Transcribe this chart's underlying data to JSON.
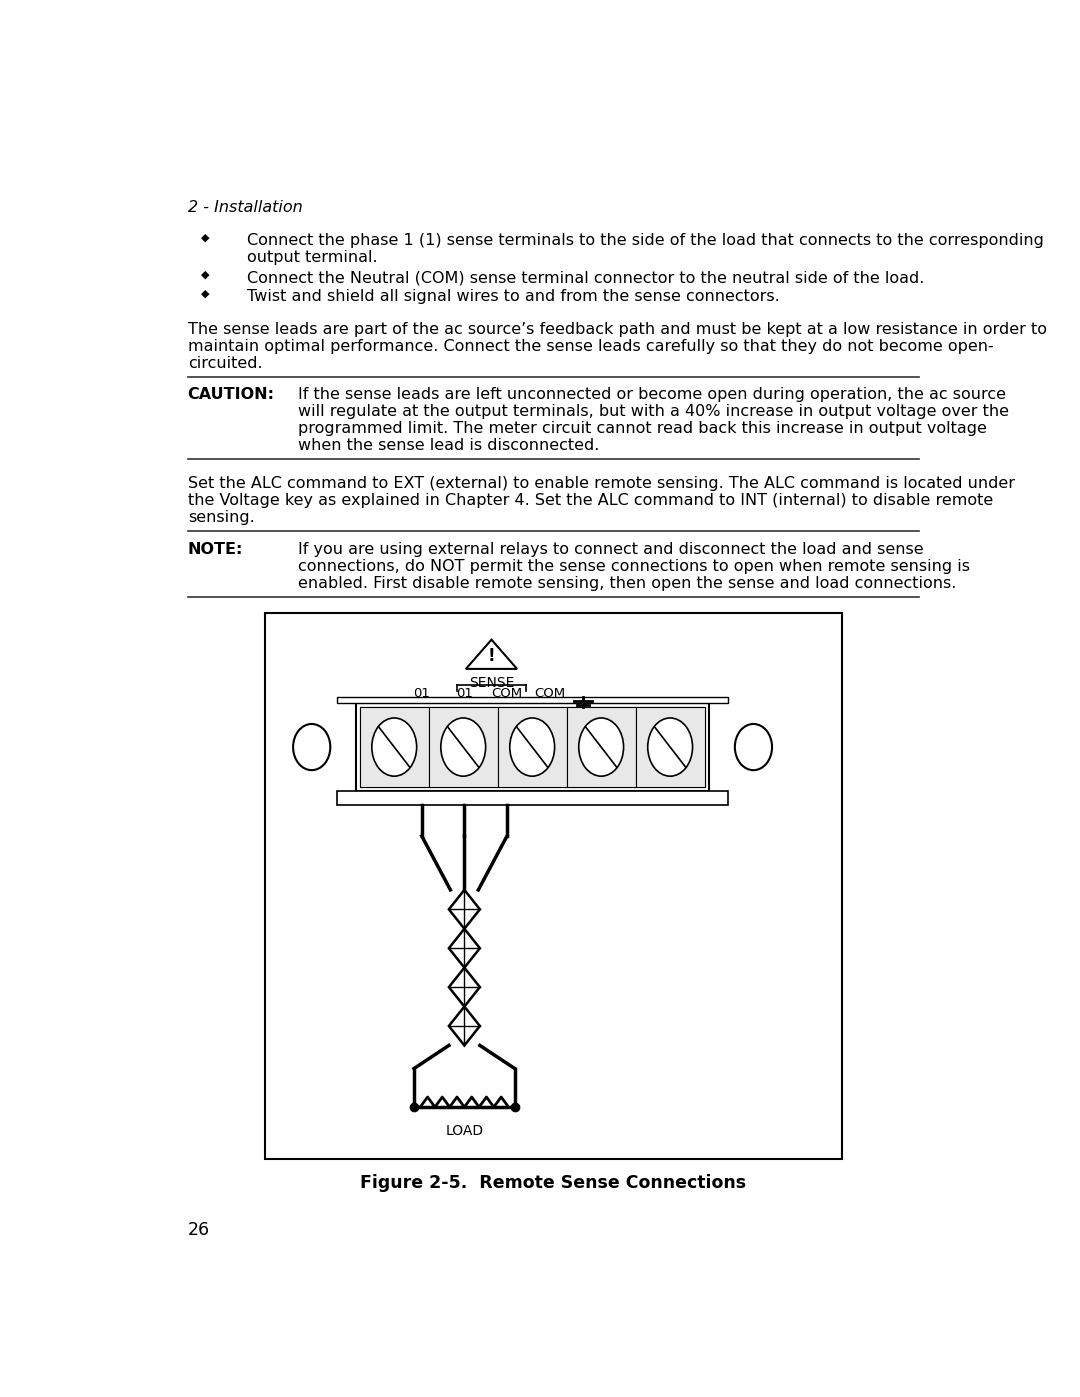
{
  "page_header": "2 - Installation",
  "bullet1": "Connect the phase 1 (1) sense terminals to the side of the load that connects to the corresponding\noutput terminal.",
  "bullet2": "Connect the Neutral (COM) sense terminal connector to the neutral side of the load.",
  "bullet3": "Twist and shield all signal wires to and from the sense connectors.",
  "paragraph1_line1": "The sense leads are part of the ac source’s feedback path and must be kept at a low resistance in order to",
  "paragraph1_line2": "maintain optimal performance. Connect the sense leads carefully so that they do not become open-",
  "paragraph1_line3": "circuited.",
  "caution_label": "CAUTION:",
  "caution_line1": "If the sense leads are left unconnected or become open during operation, the ac source",
  "caution_line2": "will regulate at the output terminals, but with a 40% increase in output voltage over the",
  "caution_line3": "programmed limit. The meter circuit cannot read back this increase in output voltage",
  "caution_line4": "when the sense lead is disconnected.",
  "paragraph2_line1": "Set the ALC command to EXT (external) to enable remote sensing. The ALC command is located under",
  "paragraph2_line2": "the Voltage key as explained in Chapter 4. Set the ALC command to INT (internal) to disable remote",
  "paragraph2_line3": "sensing.",
  "note_label": "NOTE:",
  "note_line1": "If you are using external relays to connect and disconnect the load and sense",
  "note_line2": "connections, do NOT permit the sense connections to open when remote sensing is",
  "note_line3": "enabled. First disable remote sensing, then open the sense and load connections.",
  "figure_caption": "Figure 2-5.  Remote Sense Connections",
  "page_number": "26",
  "bg_color": "#ffffff",
  "text_color": "#000000",
  "sense_label": "SENSE",
  "col_labels": [
    "01",
    "01",
    "COM",
    "COM"
  ],
  "load_label": "LOAD"
}
